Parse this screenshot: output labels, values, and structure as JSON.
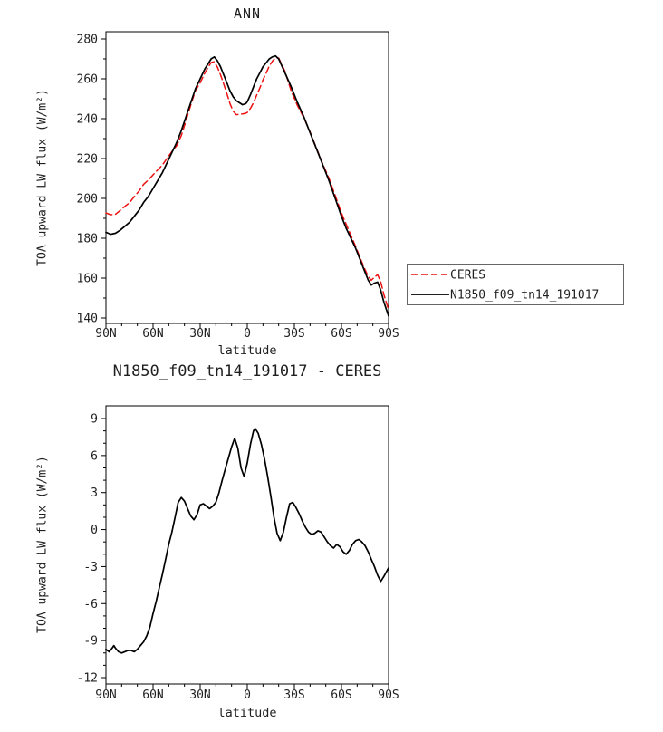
{
  "figure": {
    "background": "#ffffff",
    "accent_red": "#ee1111",
    "line_black": "#000000"
  },
  "chart_data": [
    {
      "type": "line",
      "title": "ANN",
      "xlabel": "latitude",
      "ylabel": "TOA upward LW flux (W/m²)",
      "xlim": [
        90,
        -90
      ],
      "ylim": [
        140,
        280
      ],
      "xticks": [
        90,
        60,
        30,
        0,
        -30,
        -60,
        -90
      ],
      "xtick_labels": [
        "90N",
        "60N",
        "30N",
        "0",
        "30S",
        "60S",
        "90S"
      ],
      "yticks": [
        140,
        160,
        180,
        200,
        220,
        240,
        260,
        280
      ],
      "grid": false,
      "legend": {
        "position": "right-outside",
        "border": true,
        "entries": [
          "CERES",
          "N1850_f09_tn14_191017"
        ]
      },
      "series": [
        {
          "name": "CERES",
          "color": "#ee1111",
          "style": "dashed",
          "points": [
            [
              90,
              192.7
            ],
            [
              87,
              191.8
            ],
            [
              84,
              192
            ],
            [
              81,
              193.9
            ],
            [
              78,
              196
            ],
            [
              75,
              197.8
            ],
            [
              72,
              200.9
            ],
            [
              69,
              203.6
            ],
            [
              66,
              207.1
            ],
            [
              63,
              209.2
            ],
            [
              60,
              211.8
            ],
            [
              57,
              214.3
            ],
            [
              54,
              216.8
            ],
            [
              51,
              220.2
            ],
            [
              48,
              223.5
            ],
            [
              45,
              226.4
            ],
            [
              42,
              231.5
            ],
            [
              39,
              239
            ],
            [
              36,
              246.8
            ],
            [
              33,
              254.1
            ],
            [
              30,
              258
            ],
            [
              27,
              262.9
            ],
            [
              25,
              265.7
            ],
            [
              23,
              268.2
            ],
            [
              21,
              268.6
            ],
            [
              19,
              265.8
            ],
            [
              17,
              262
            ],
            [
              15,
              257.4
            ],
            [
              13,
              252.6
            ],
            [
              11,
              247.6
            ],
            [
              9,
              243.8
            ],
            [
              7,
              242
            ],
            [
              5,
              242.2
            ],
            [
              3,
              242.4
            ],
            [
              1,
              242.7
            ],
            [
              0,
              243.1
            ],
            [
              -2,
              245.2
            ],
            [
              -4,
              248
            ],
            [
              -6,
              251.8
            ],
            [
              -8,
              255.4
            ],
            [
              -10,
              259.4
            ],
            [
              -12,
              262.8
            ],
            [
              -14,
              266.4
            ],
            [
              -16,
              268.8
            ],
            [
              -18,
              270.7
            ],
            [
              -20,
              270.4
            ],
            [
              -24,
              263.8
            ],
            [
              -28,
              253.9
            ],
            [
              -32,
              246.5
            ],
            [
              -36,
              240.5
            ],
            [
              -40,
              233.3
            ],
            [
              -44,
              225.3
            ],
            [
              -48,
              217.4
            ],
            [
              -52,
              210.2
            ],
            [
              -56,
              201.4
            ],
            [
              -60,
              192.6
            ],
            [
              -63,
              187
            ],
            [
              -66,
              181.5
            ],
            [
              -69,
              175.9
            ],
            [
              -72,
              169.9
            ],
            [
              -75,
              164.3
            ],
            [
              -77,
              160.8
            ],
            [
              -79,
              158.9
            ],
            [
              -81,
              160.5
            ],
            [
              -83,
              161.7
            ],
            [
              -85,
              158.2
            ],
            [
              -87,
              151.8
            ],
            [
              -90,
              144.1
            ]
          ]
        },
        {
          "name": "N1850_f09_tn14_191017",
          "color": "#000000",
          "style": "solid",
          "points": [
            [
              90,
              183
            ],
            [
              87,
              182
            ],
            [
              84,
              182.5
            ],
            [
              81,
              184
            ],
            [
              78,
              186
            ],
            [
              75,
              188
            ],
            [
              72,
              191
            ],
            [
              69,
              194
            ],
            [
              66,
              198
            ],
            [
              63,
              201
            ],
            [
              60,
              205
            ],
            [
              57,
              209
            ],
            [
              54,
              213
            ],
            [
              51,
              218
            ],
            [
              48,
              223
            ],
            [
              45,
              228
            ],
            [
              42,
              234
            ],
            [
              39,
              241
            ],
            [
              36,
              248
            ],
            [
              33,
              255
            ],
            [
              30,
              260
            ],
            [
              27,
              265
            ],
            [
              25,
              267.5
            ],
            [
              23,
              270
            ],
            [
              21,
              271
            ],
            [
              19,
              269
            ],
            [
              17,
              266
            ],
            [
              15,
              262
            ],
            [
              13,
              258
            ],
            [
              11,
              254
            ],
            [
              9,
              251
            ],
            [
              7,
              249
            ],
            [
              5,
              248
            ],
            [
              3,
              247
            ],
            [
              1,
              247.5
            ],
            [
              0,
              248.5
            ],
            [
              -2,
              252
            ],
            [
              -4,
              256
            ],
            [
              -6,
              260
            ],
            [
              -8,
              263
            ],
            [
              -10,
              266
            ],
            [
              -12,
              268
            ],
            [
              -14,
              270
            ],
            [
              -16,
              271
            ],
            [
              -18,
              271.5
            ],
            [
              -20,
              270
            ],
            [
              -24,
              263
            ],
            [
              -28,
              256
            ],
            [
              -32,
              248
            ],
            [
              -36,
              241
            ],
            [
              -40,
              233
            ],
            [
              -44,
              225
            ],
            [
              -48,
              217
            ],
            [
              -52,
              209
            ],
            [
              -56,
              200
            ],
            [
              -60,
              191
            ],
            [
              -63,
              185
            ],
            [
              -66,
              180
            ],
            [
              -69,
              175
            ],
            [
              -72,
              169
            ],
            [
              -75,
              163
            ],
            [
              -77,
              159
            ],
            [
              -79,
              156.5
            ],
            [
              -81,
              157.5
            ],
            [
              -83,
              158
            ],
            [
              -85,
              154
            ],
            [
              -87,
              148
            ],
            [
              -90,
              141
            ]
          ]
        }
      ]
    },
    {
      "type": "line",
      "title": "N1850_f09_tn14_191017 - CERES",
      "xlabel": "latitude",
      "ylabel": "TOA upward LW flux (W/m²)",
      "xlim": [
        90,
        -90
      ],
      "ylim": [
        -12,
        9
      ],
      "xticks": [
        90,
        60,
        30,
        0,
        -30,
        -60,
        -90
      ],
      "xtick_labels": [
        "90N",
        "60N",
        "30N",
        "0",
        "30S",
        "60S",
        "90S"
      ],
      "yticks": [
        -12,
        -9,
        -6,
        -3,
        0,
        3,
        6,
        9
      ],
      "grid": false,
      "series": [
        {
          "name": "N1850_f09_tn14_191017 - CERES",
          "color": "#000000",
          "style": "solid",
          "points": [
            [
              90,
              -9.7
            ],
            [
              88,
              -9.9
            ],
            [
              86,
              -9.6
            ],
            [
              85,
              -9.4
            ],
            [
              84,
              -9.6
            ],
            [
              82,
              -9.9
            ],
            [
              80,
              -10.0
            ],
            [
              78,
              -9.9
            ],
            [
              76,
              -9.8
            ],
            [
              74,
              -9.8
            ],
            [
              72,
              -9.9
            ],
            [
              70,
              -9.7
            ],
            [
              68,
              -9.4
            ],
            [
              66,
              -9.1
            ],
            [
              64,
              -8.6
            ],
            [
              62,
              -7.9
            ],
            [
              60,
              -6.8
            ],
            [
              58,
              -5.8
            ],
            [
              56,
              -4.7
            ],
            [
              54,
              -3.6
            ],
            [
              52,
              -2.4
            ],
            [
              50,
              -1.2
            ],
            [
              48,
              -0.2
            ],
            [
              46,
              1.0
            ],
            [
              44,
              2.2
            ],
            [
              42,
              2.6
            ],
            [
              40,
              2.3
            ],
            [
              38,
              1.7
            ],
            [
              36,
              1.1
            ],
            [
              34,
              0.8
            ],
            [
              32,
              1.2
            ],
            [
              30,
              2.0
            ],
            [
              28,
              2.1
            ],
            [
              26,
              1.9
            ],
            [
              24,
              1.7
            ],
            [
              22,
              1.9
            ],
            [
              20,
              2.2
            ],
            [
              18,
              3.0
            ],
            [
              16,
              4.0
            ],
            [
              14,
              4.9
            ],
            [
              12,
              5.8
            ],
            [
              10,
              6.7
            ],
            [
              8,
              7.4
            ],
            [
              6,
              6.6
            ],
            [
              4,
              5.0
            ],
            [
              2,
              4.3
            ],
            [
              0,
              5.4
            ],
            [
              -2,
              6.9
            ],
            [
              -4,
              8.0
            ],
            [
              -5,
              8.2
            ],
            [
              -7,
              7.8
            ],
            [
              -9,
              6.9
            ],
            [
              -11,
              5.7
            ],
            [
              -13,
              4.3
            ],
            [
              -15,
              2.7
            ],
            [
              -17,
              1.0
            ],
            [
              -19,
              -0.3
            ],
            [
              -21,
              -0.9
            ],
            [
              -23,
              -0.2
            ],
            [
              -25,
              1.0
            ],
            [
              -27,
              2.1
            ],
            [
              -29,
              2.2
            ],
            [
              -31,
              1.8
            ],
            [
              -33,
              1.3
            ],
            [
              -35,
              0.7
            ],
            [
              -37,
              0.2
            ],
            [
              -39,
              -0.2
            ],
            [
              -41,
              -0.4
            ],
            [
              -43,
              -0.3
            ],
            [
              -45,
              -0.1
            ],
            [
              -47,
              -0.2
            ],
            [
              -49,
              -0.6
            ],
            [
              -51,
              -1.0
            ],
            [
              -53,
              -1.3
            ],
            [
              -55,
              -1.5
            ],
            [
              -57,
              -1.2
            ],
            [
              -59,
              -1.4
            ],
            [
              -61,
              -1.8
            ],
            [
              -63,
              -2.0
            ],
            [
              -65,
              -1.7
            ],
            [
              -67,
              -1.2
            ],
            [
              -69,
              -0.9
            ],
            [
              -71,
              -0.8
            ],
            [
              -73,
              -1.0
            ],
            [
              -75,
              -1.3
            ],
            [
              -77,
              -1.8
            ],
            [
              -79,
              -2.4
            ],
            [
              -81,
              -3.0
            ],
            [
              -83,
              -3.7
            ],
            [
              -85,
              -4.2
            ],
            [
              -87,
              -3.8
            ],
            [
              -90,
              -3.1
            ]
          ]
        }
      ]
    }
  ]
}
